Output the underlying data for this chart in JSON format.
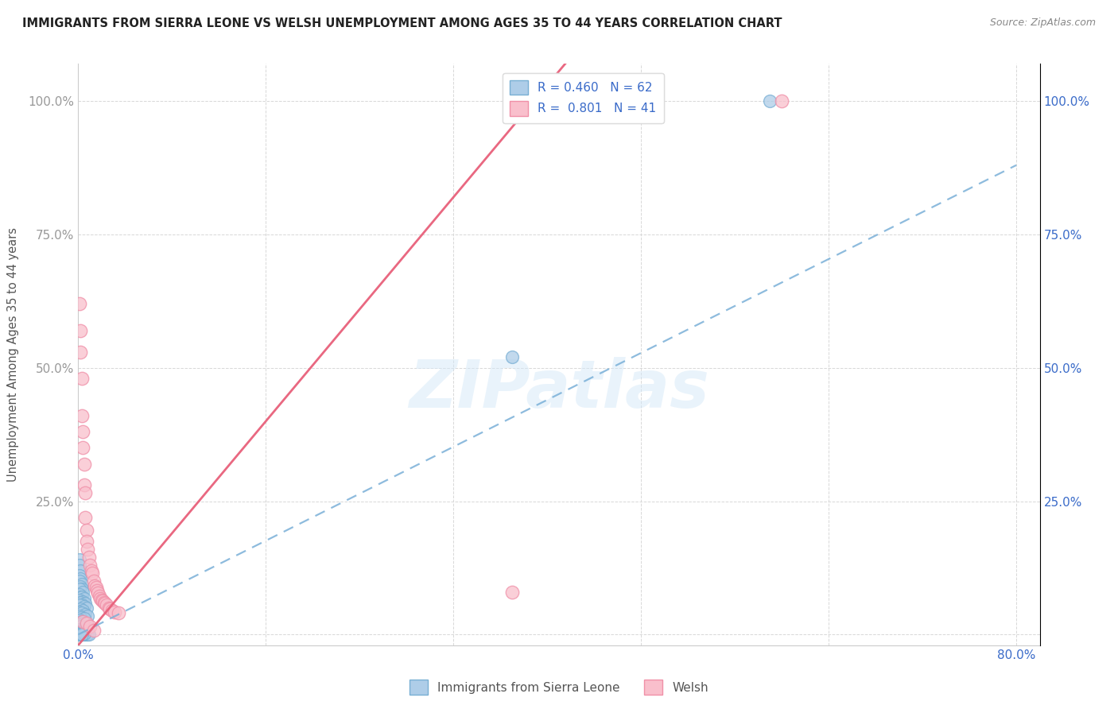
{
  "title": "IMMIGRANTS FROM SIERRA LEONE VS WELSH UNEMPLOYMENT AMONG AGES 35 TO 44 YEARS CORRELATION CHART",
  "source": "Source: ZipAtlas.com",
  "ylabel": "Unemployment Among Ages 35 to 44 years",
  "watermark": "ZIPatlas",
  "blue_scatter": [
    [
      0.001,
      0.14
    ],
    [
      0.001,
      0.13
    ],
    [
      0.002,
      0.12
    ],
    [
      0.001,
      0.11
    ],
    [
      0.002,
      0.105
    ],
    [
      0.001,
      0.1
    ],
    [
      0.003,
      0.095
    ],
    [
      0.002,
      0.09
    ],
    [
      0.003,
      0.085
    ],
    [
      0.001,
      0.085
    ],
    [
      0.004,
      0.08
    ],
    [
      0.001,
      0.075
    ],
    [
      0.002,
      0.07
    ],
    [
      0.003,
      0.07
    ],
    [
      0.005,
      0.068
    ],
    [
      0.001,
      0.065
    ],
    [
      0.004,
      0.062
    ],
    [
      0.002,
      0.06
    ],
    [
      0.006,
      0.058
    ],
    [
      0.003,
      0.055
    ],
    [
      0.001,
      0.055
    ],
    [
      0.005,
      0.052
    ],
    [
      0.007,
      0.05
    ],
    [
      0.002,
      0.048
    ],
    [
      0.004,
      0.045
    ],
    [
      0.001,
      0.042
    ],
    [
      0.003,
      0.04
    ],
    [
      0.006,
      0.038
    ],
    [
      0.008,
      0.035
    ],
    [
      0.001,
      0.035
    ],
    [
      0.002,
      0.032
    ],
    [
      0.005,
      0.03
    ],
    [
      0.001,
      0.028
    ],
    [
      0.003,
      0.025
    ],
    [
      0.004,
      0.022
    ],
    [
      0.007,
      0.02
    ],
    [
      0.001,
      0.018
    ],
    [
      0.002,
      0.016
    ],
    [
      0.005,
      0.014
    ],
    [
      0.008,
      0.012
    ],
    [
      0.001,
      0.01
    ],
    [
      0.003,
      0.008
    ],
    [
      0.006,
      0.006
    ],
    [
      0.001,
      0.005
    ],
    [
      0.004,
      0.004
    ],
    [
      0.002,
      0.003
    ],
    [
      0.001,
      0.002
    ],
    [
      0.003,
      0.001
    ],
    [
      0.001,
      0.0
    ],
    [
      0.002,
      0.0
    ],
    [
      0.004,
      0.0
    ],
    [
      0.005,
      0.0
    ],
    [
      0.006,
      0.0
    ],
    [
      0.007,
      0.0
    ],
    [
      0.008,
      0.0
    ],
    [
      0.009,
      0.0
    ],
    [
      0.001,
      0.0
    ],
    [
      0.002,
      0.001
    ],
    [
      0.005,
      0.002
    ],
    [
      0.003,
      0.0
    ],
    [
      0.37,
      0.52
    ],
    [
      0.59,
      1.0
    ]
  ],
  "pink_scatter": [
    [
      0.001,
      0.62
    ],
    [
      0.002,
      0.57
    ],
    [
      0.002,
      0.53
    ],
    [
      0.003,
      0.48
    ],
    [
      0.003,
      0.41
    ],
    [
      0.004,
      0.38
    ],
    [
      0.004,
      0.35
    ],
    [
      0.005,
      0.32
    ],
    [
      0.005,
      0.28
    ],
    [
      0.006,
      0.265
    ],
    [
      0.006,
      0.22
    ],
    [
      0.007,
      0.195
    ],
    [
      0.007,
      0.175
    ],
    [
      0.008,
      0.16
    ],
    [
      0.009,
      0.145
    ],
    [
      0.01,
      0.13
    ],
    [
      0.011,
      0.12
    ],
    [
      0.012,
      0.115
    ],
    [
      0.013,
      0.1
    ],
    [
      0.014,
      0.092
    ],
    [
      0.015,
      0.088
    ],
    [
      0.016,
      0.082
    ],
    [
      0.017,
      0.078
    ],
    [
      0.018,
      0.072
    ],
    [
      0.019,
      0.068
    ],
    [
      0.02,
      0.065
    ],
    [
      0.021,
      0.063
    ],
    [
      0.022,
      0.06
    ],
    [
      0.023,
      0.058
    ],
    [
      0.024,
      0.055
    ],
    [
      0.026,
      0.05
    ],
    [
      0.027,
      0.048
    ],
    [
      0.029,
      0.045
    ],
    [
      0.031,
      0.042
    ],
    [
      0.034,
      0.04
    ],
    [
      0.004,
      0.025
    ],
    [
      0.007,
      0.022
    ],
    [
      0.01,
      0.015
    ],
    [
      0.013,
      0.008
    ],
    [
      0.6,
      1.0
    ],
    [
      0.37,
      0.08
    ]
  ],
  "blue_line": [
    [
      0.0,
      0.0
    ],
    [
      0.8,
      0.88
    ]
  ],
  "pink_line": [
    [
      0.0,
      -0.05
    ],
    [
      0.4,
      1.05
    ]
  ],
  "xlim": [
    0.0,
    0.82
  ],
  "ylim": [
    -0.02,
    1.07
  ],
  "x_ticks": [
    0.0,
    0.16,
    0.32,
    0.48,
    0.64,
    0.8
  ],
  "x_tick_labels": [
    "0.0%",
    "",
    "",
    "",
    "",
    "80.0%"
  ],
  "y_ticks": [
    0.0,
    0.25,
    0.5,
    0.75,
    1.0
  ],
  "y_tick_labels": [
    "",
    "25.0%",
    "50.0%",
    "75.0%",
    "100.0%"
  ],
  "background_color": "#ffffff",
  "grid_color": "#d8d8d8"
}
